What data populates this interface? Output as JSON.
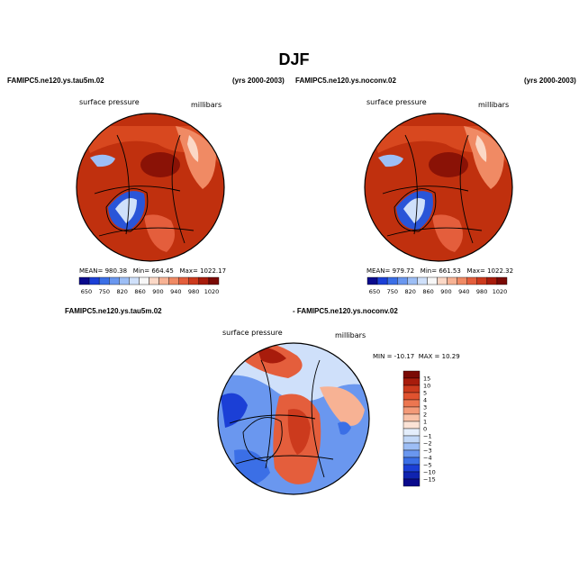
{
  "header": {
    "title": "DJF",
    "left_case": "FAMIPC5.ne120.ys.tau5m.02",
    "left_years": "(yrs 2000-2003)",
    "right_case": "FAMIPC5.ne120.ys.noconv.02",
    "right_years": "(yrs 2000-2003)",
    "diff_case_a": "FAMIPC5.ne120.ys.tau5m.02",
    "diff_case_b": "- FAMIPC5.ne120.ys.noconv.02"
  },
  "chart_data": [
    {
      "type": "heatmap",
      "projection": "polar-stereographic-north",
      "variable_label": "surface pressure",
      "units_label": "millibars",
      "stats": {
        "mean_label": "MEAN=",
        "mean": "980.38",
        "min_label": "Min=",
        "min": "664.45",
        "max_label": "Max=",
        "max": "1022.17"
      },
      "colorbar_ticks": [
        "650",
        "750",
        "820",
        "860",
        "900",
        "940",
        "980",
        "1020"
      ],
      "colorbar_colors": [
        "#0a0a8c",
        "#1b3fd6",
        "#3b6fe6",
        "#6a97ef",
        "#9dbef5",
        "#cfe0fa",
        "#f7f7f7",
        "#fbd8c6",
        "#f7b294",
        "#f08a64",
        "#e45e3c",
        "#cc3a1d",
        "#a81c0c",
        "#7a0a05"
      ]
    },
    {
      "type": "heatmap",
      "projection": "polar-stereographic-north",
      "variable_label": "surface pressure",
      "units_label": "millibars",
      "stats": {
        "mean_label": "MEAN=",
        "mean": "979.72",
        "min_label": "Min=",
        "min": "661.53",
        "max_label": "Max=",
        "max": "1022.32"
      },
      "colorbar_ticks": [
        "650",
        "750",
        "820",
        "860",
        "900",
        "940",
        "980",
        "1020"
      ],
      "colorbar_colors": [
        "#0a0a8c",
        "#1b3fd6",
        "#3b6fe6",
        "#6a97ef",
        "#9dbef5",
        "#cfe0fa",
        "#f7f7f7",
        "#fbd8c6",
        "#f7b294",
        "#f08a64",
        "#e45e3c",
        "#cc3a1d",
        "#a81c0c",
        "#7a0a05"
      ]
    },
    {
      "type": "heatmap",
      "projection": "polar-stereographic-north",
      "variable_label": "surface pressure",
      "units_label": "millibars",
      "range_text": {
        "min_label": "MIN =",
        "min": "-10.17",
        "max_label": "MAX =",
        "max": "10.29"
      },
      "colorbar_ticks": [
        "15",
        "10",
        "5",
        "4",
        "3",
        "2",
        "1",
        "0",
        "−1",
        "−2",
        "−3",
        "−4",
        "−5",
        "−10",
        "−15"
      ],
      "colorbar_colors": [
        "#7a0a05",
        "#a81c0c",
        "#cc3a1d",
        "#e0522f",
        "#ec7650",
        "#f39a78",
        "#f9c2a8",
        "#fbe3d6",
        "#e4eefb",
        "#c2d8f7",
        "#9dbef5",
        "#6a97ef",
        "#3b6fe6",
        "#1b3fd6",
        "#0f23b0",
        "#0a0a8c"
      ]
    }
  ]
}
